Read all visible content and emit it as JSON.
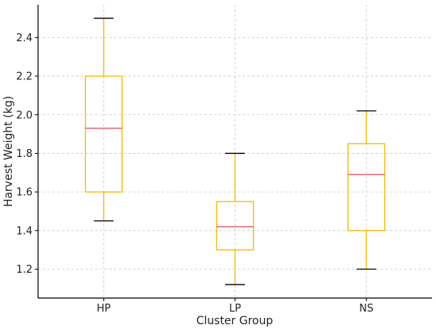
{
  "chart_data": {
    "type": "box",
    "title": "",
    "xlabel": "Cluster Group",
    "ylabel": "Harvest Weight (kg)",
    "categories": [
      "HP",
      "LP",
      "NS"
    ],
    "boxes": [
      {
        "category": "HP",
        "whisker_low": 1.45,
        "q1": 1.6,
        "median": 1.93,
        "q3": 2.2,
        "whisker_high": 2.5
      },
      {
        "category": "LP",
        "whisker_low": 1.12,
        "q1": 1.3,
        "median": 1.42,
        "q3": 1.55,
        "whisker_high": 1.8
      },
      {
        "category": "NS",
        "whisker_low": 1.2,
        "q1": 1.4,
        "median": 1.69,
        "q3": 1.85,
        "whisker_high": 2.02
      }
    ],
    "yticks": [
      1.2,
      1.4,
      1.6,
      1.8,
      2.0,
      2.2,
      2.4
    ],
    "ytick_labels": [
      "1.2",
      "1.4",
      "1.6",
      "1.8",
      "2.0",
      "2.2",
      "2.4"
    ],
    "ylim": [
      1.05,
      2.57
    ],
    "grid": true,
    "colors": {
      "box": "#f5b800",
      "median": "#e05a6e",
      "whisker_cap": "#000000",
      "grid": "#c8c8c8",
      "axis": "#000000"
    }
  }
}
